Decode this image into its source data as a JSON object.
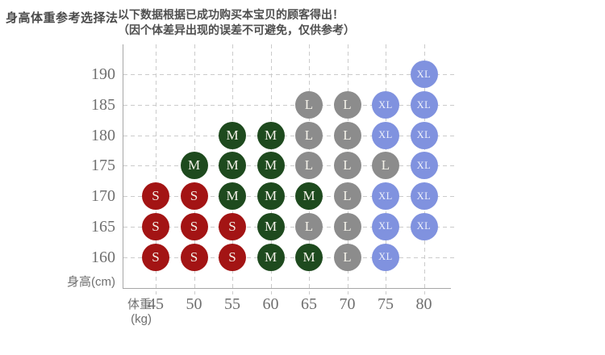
{
  "header": {
    "title": "身高体重参考选择法",
    "note_line1": "以下数据根据已成功购买本宝贝的顾客得出！",
    "note_line2": "（因个体差异出现的误差不可避免，仅供参考）"
  },
  "chart_data": {
    "type": "scatter",
    "title": "",
    "xlabel": "体重(kg)",
    "ylabel": "身高(cm)",
    "x_ticks": [
      45,
      50,
      55,
      60,
      65,
      70,
      75,
      80
    ],
    "y_ticks": [
      160,
      165,
      170,
      175,
      180,
      185,
      190
    ],
    "xlim": [
      45,
      80
    ],
    "ylim": [
      160,
      190
    ],
    "grid": true,
    "legend": "none",
    "size_colors": {
      "S": "#a31414",
      "M": "#1e4a1e",
      "L": "#8c8c8c",
      "XL": "#8092df"
    },
    "points": [
      {
        "height": 190,
        "weight": 80,
        "size": "XL"
      },
      {
        "height": 185,
        "weight": 65,
        "size": "L"
      },
      {
        "height": 185,
        "weight": 70,
        "size": "L"
      },
      {
        "height": 185,
        "weight": 75,
        "size": "XL"
      },
      {
        "height": 185,
        "weight": 80,
        "size": "XL"
      },
      {
        "height": 180,
        "weight": 55,
        "size": "M"
      },
      {
        "height": 180,
        "weight": 60,
        "size": "M"
      },
      {
        "height": 180,
        "weight": 65,
        "size": "L"
      },
      {
        "height": 180,
        "weight": 70,
        "size": "L"
      },
      {
        "height": 180,
        "weight": 75,
        "size": "XL"
      },
      {
        "height": 180,
        "weight": 80,
        "size": "XL"
      },
      {
        "height": 175,
        "weight": 50,
        "size": "M"
      },
      {
        "height": 175,
        "weight": 55,
        "size": "M"
      },
      {
        "height": 175,
        "weight": 60,
        "size": "M"
      },
      {
        "height": 175,
        "weight": 65,
        "size": "L"
      },
      {
        "height": 175,
        "weight": 70,
        "size": "L"
      },
      {
        "height": 175,
        "weight": 75,
        "size": "L"
      },
      {
        "height": 175,
        "weight": 80,
        "size": "XL"
      },
      {
        "height": 170,
        "weight": 45,
        "size": "S"
      },
      {
        "height": 170,
        "weight": 50,
        "size": "S"
      },
      {
        "height": 170,
        "weight": 55,
        "size": "M"
      },
      {
        "height": 170,
        "weight": 60,
        "size": "M"
      },
      {
        "height": 170,
        "weight": 65,
        "size": "M"
      },
      {
        "height": 170,
        "weight": 70,
        "size": "L"
      },
      {
        "height": 170,
        "weight": 75,
        "size": "XL"
      },
      {
        "height": 170,
        "weight": 80,
        "size": "XL"
      },
      {
        "height": 165,
        "weight": 45,
        "size": "S"
      },
      {
        "height": 165,
        "weight": 50,
        "size": "S"
      },
      {
        "height": 165,
        "weight": 55,
        "size": "S"
      },
      {
        "height": 165,
        "weight": 60,
        "size": "M"
      },
      {
        "height": 165,
        "weight": 65,
        "size": "L"
      },
      {
        "height": 165,
        "weight": 70,
        "size": "L"
      },
      {
        "height": 165,
        "weight": 75,
        "size": "XL"
      },
      {
        "height": 165,
        "weight": 80,
        "size": "XL"
      },
      {
        "height": 160,
        "weight": 45,
        "size": "S"
      },
      {
        "height": 160,
        "weight": 50,
        "size": "S"
      },
      {
        "height": 160,
        "weight": 55,
        "size": "S"
      },
      {
        "height": 160,
        "weight": 60,
        "size": "M"
      },
      {
        "height": 160,
        "weight": 65,
        "size": "M"
      },
      {
        "height": 160,
        "weight": 70,
        "size": "L"
      },
      {
        "height": 160,
        "weight": 75,
        "size": "XL"
      }
    ]
  }
}
